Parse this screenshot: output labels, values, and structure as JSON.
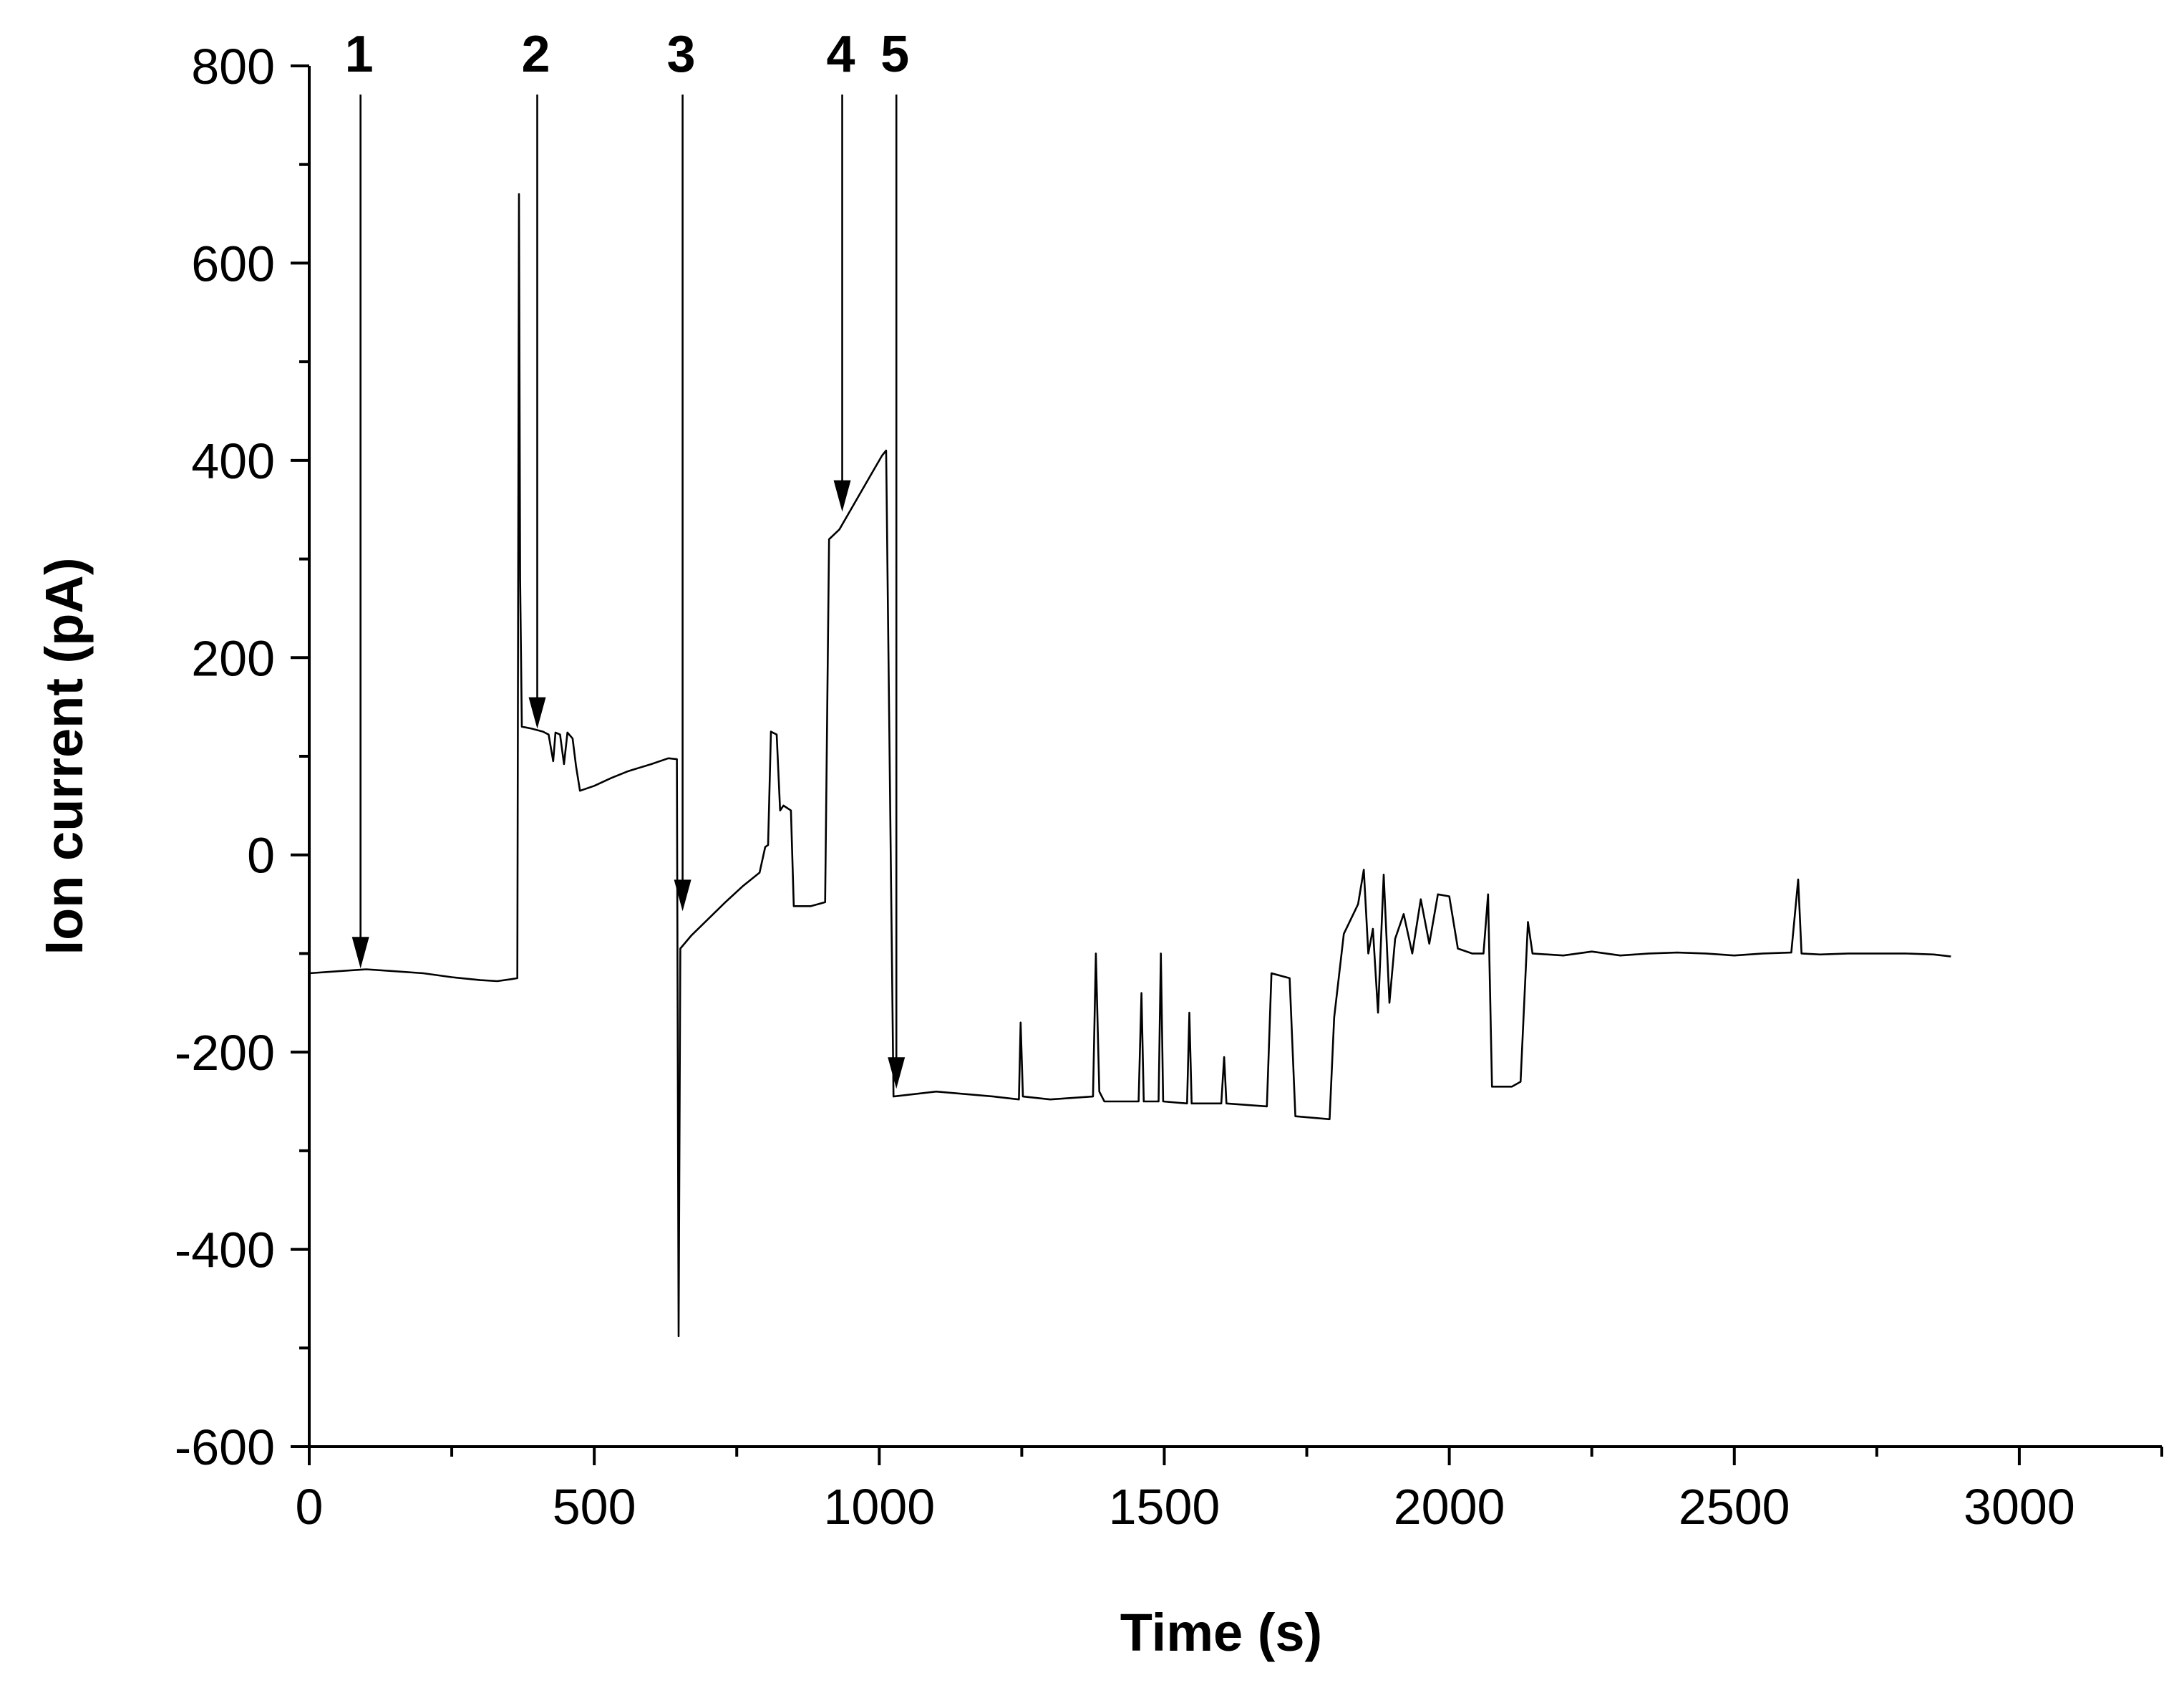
{
  "chart_data": {
    "type": "line",
    "xlabel": "Time (s)",
    "ylabel": "Ion current (pA)",
    "xlim": [
      0,
      3250
    ],
    "ylim": [
      -600,
      800
    ],
    "x_ticks": [
      0,
      500,
      1000,
      1500,
      2000,
      2500,
      3000
    ],
    "x_tick_labels": [
      "0",
      "500",
      "1000",
      "1500",
      "2000",
      "2500",
      "3000"
    ],
    "y_ticks": [
      800,
      600,
      400,
      200,
      0,
      -200,
      -400,
      -600
    ],
    "y_tick_labels": [
      "800",
      "600",
      "400",
      "200",
      "0",
      "-200",
      "-400",
      "-600"
    ],
    "grid": false,
    "series": [
      {
        "color": "#000000",
        "points": [
          [
            0,
            -120
          ],
          [
            50,
            -118
          ],
          [
            100,
            -116
          ],
          [
            150,
            -118
          ],
          [
            200,
            -120
          ],
          [
            250,
            -124
          ],
          [
            300,
            -127
          ],
          [
            330,
            -128
          ],
          [
            355,
            -126
          ],
          [
            365,
            -125
          ],
          [
            368,
            670
          ],
          [
            370,
            280
          ],
          [
            373,
            130
          ],
          [
            390,
            128
          ],
          [
            410,
            125
          ],
          [
            420,
            122
          ],
          [
            428,
            95
          ],
          [
            432,
            124
          ],
          [
            440,
            122
          ],
          [
            447,
            92
          ],
          [
            453,
            124
          ],
          [
            462,
            118
          ],
          [
            468,
            90
          ],
          [
            475,
            65
          ],
          [
            500,
            70
          ],
          [
            530,
            78
          ],
          [
            560,
            85
          ],
          [
            600,
            92
          ],
          [
            630,
            98
          ],
          [
            645,
            97
          ],
          [
            648,
            -488
          ],
          [
            651,
            -95
          ],
          [
            670,
            -82
          ],
          [
            700,
            -65
          ],
          [
            730,
            -48
          ],
          [
            760,
            -32
          ],
          [
            790,
            -18
          ],
          [
            800,
            8
          ],
          [
            805,
            10
          ],
          [
            810,
            125
          ],
          [
            820,
            122
          ],
          [
            826,
            45
          ],
          [
            832,
            50
          ],
          [
            845,
            45
          ],
          [
            850,
            -52
          ],
          [
            880,
            -52
          ],
          [
            905,
            -48
          ],
          [
            912,
            320
          ],
          [
            930,
            330
          ],
          [
            960,
            360
          ],
          [
            990,
            390
          ],
          [
            1005,
            405
          ],
          [
            1012,
            410
          ],
          [
            1025,
            -245
          ],
          [
            1100,
            -240
          ],
          [
            1200,
            -245
          ],
          [
            1245,
            -248
          ],
          [
            1248,
            -170
          ],
          [
            1252,
            -245
          ],
          [
            1300,
            -248
          ],
          [
            1375,
            -245
          ],
          [
            1380,
            -100
          ],
          [
            1386,
            -240
          ],
          [
            1395,
            -250
          ],
          [
            1455,
            -250
          ],
          [
            1460,
            -140
          ],
          [
            1464,
            -250
          ],
          [
            1490,
            -250
          ],
          [
            1494,
            -100
          ],
          [
            1498,
            -250
          ],
          [
            1540,
            -252
          ],
          [
            1544,
            -160
          ],
          [
            1548,
            -252
          ],
          [
            1600,
            -252
          ],
          [
            1605,
            -205
          ],
          [
            1609,
            -252
          ],
          [
            1680,
            -255
          ],
          [
            1688,
            -120
          ],
          [
            1720,
            -125
          ],
          [
            1730,
            -265
          ],
          [
            1790,
            -268
          ],
          [
            1798,
            -165
          ],
          [
            1815,
            -80
          ],
          [
            1840,
            -50
          ],
          [
            1850,
            -15
          ],
          [
            1858,
            -100
          ],
          [
            1866,
            -75
          ],
          [
            1875,
            -160
          ],
          [
            1885,
            -20
          ],
          [
            1895,
            -150
          ],
          [
            1905,
            -85
          ],
          [
            1920,
            -60
          ],
          [
            1935,
            -100
          ],
          [
            1950,
            -45
          ],
          [
            1965,
            -90
          ],
          [
            1980,
            -40
          ],
          [
            2000,
            -42
          ],
          [
            2015,
            -95
          ],
          [
            2040,
            -100
          ],
          [
            2060,
            -100
          ],
          [
            2068,
            -40
          ],
          [
            2075,
            -235
          ],
          [
            2110,
            -235
          ],
          [
            2125,
            -230
          ],
          [
            2138,
            -68
          ],
          [
            2146,
            -100
          ],
          [
            2200,
            -102
          ],
          [
            2250,
            -98
          ],
          [
            2300,
            -102
          ],
          [
            2350,
            -100
          ],
          [
            2400,
            -99
          ],
          [
            2450,
            -100
          ],
          [
            2500,
            -102
          ],
          [
            2550,
            -100
          ],
          [
            2600,
            -99
          ],
          [
            2612,
            -25
          ],
          [
            2618,
            -100
          ],
          [
            2650,
            -101
          ],
          [
            2700,
            -100
          ],
          [
            2750,
            -100
          ],
          [
            2800,
            -100
          ],
          [
            2850,
            -101
          ],
          [
            2880,
            -103
          ]
        ]
      }
    ],
    "annotations": [
      {
        "label": "1",
        "x": 90,
        "y": -118
      },
      {
        "label": "2",
        "x": 400,
        "y": 125
      },
      {
        "label": "3",
        "x": 655,
        "y": -60
      },
      {
        "label": "4",
        "x": 935,
        "y": 345
      },
      {
        "label": "5",
        "x": 1030,
        "y": -240
      }
    ]
  }
}
